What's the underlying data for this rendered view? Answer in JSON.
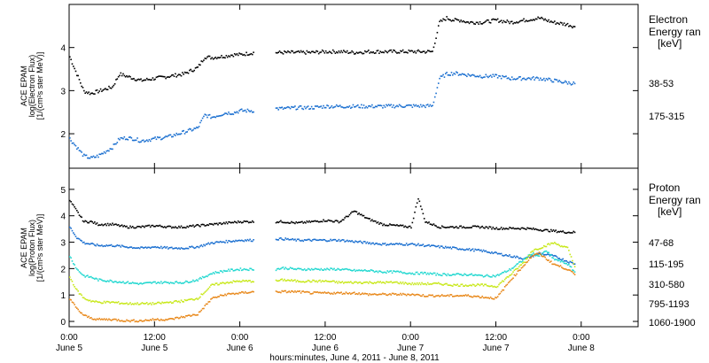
{
  "figure": {
    "xlabel": "hours:minutes, June  4, 2011 - June  8, 2011",
    "x_ticks": [
      {
        "t": 0,
        "time": "0:00",
        "day": "June 5"
      },
      {
        "t": 12,
        "time": "12:00",
        "day": "June 5"
      },
      {
        "t": 24,
        "time": "0:00",
        "day": "June 6"
      },
      {
        "t": 36,
        "time": "12:00",
        "day": "June 6"
      },
      {
        "t": 48,
        "time": "0:00",
        "day": "June 7"
      },
      {
        "t": 60,
        "time": "12:00",
        "day": "June 7"
      },
      {
        "t": 72,
        "time": "0:00",
        "day": "June 8"
      }
    ]
  },
  "chart_data": [
    {
      "type": "scatter",
      "title": "",
      "ylabel": "ACE EPAM",
      "ylabel2": "log(Electron Flux)",
      "ylabel3": "[1/(cm²s ster MeV)]",
      "xlabel": "hours:minutes, June  4, 2011 - June  8, 2011",
      "xlim": [
        0,
        80
      ],
      "ylim": [
        1.2,
        5
      ],
      "y_ticks": [
        2,
        3,
        4
      ],
      "legend_title": [
        "Electron",
        "Energy ran",
        "[keV]"
      ],
      "legend_position": "right",
      "grid": false,
      "series": [
        {
          "name": "38-53",
          "color": "#000000",
          "x": [
            0,
            1,
            2,
            3,
            4,
            5,
            6,
            7,
            8,
            9,
            10,
            12,
            14,
            16,
            18,
            19,
            20,
            21,
            22,
            23,
            24,
            26,
            28,
            29,
            30,
            32,
            34,
            36,
            38,
            40,
            42,
            44,
            46,
            48,
            50,
            51,
            52,
            53,
            54,
            55,
            56,
            58,
            60,
            62,
            64,
            66,
            68,
            70,
            71
          ],
          "y": [
            3.8,
            3.4,
            3.0,
            2.95,
            3.0,
            3.05,
            3.1,
            3.4,
            3.35,
            3.3,
            3.25,
            3.3,
            3.35,
            3.4,
            3.55,
            3.8,
            3.78,
            3.8,
            3.82,
            3.85,
            3.85,
            3.9,
            null,
            3.9,
            3.9,
            3.9,
            3.9,
            3.92,
            3.92,
            3.9,
            3.92,
            3.92,
            3.92,
            3.92,
            3.92,
            3.92,
            4.6,
            4.7,
            4.65,
            4.65,
            4.6,
            4.6,
            4.65,
            4.6,
            4.65,
            4.7,
            4.6,
            4.55,
            4.5
          ]
        },
        {
          "name": "175-315",
          "color": "#1a6fd0",
          "x": [
            0,
            1,
            2,
            3,
            4,
            5,
            6,
            7,
            8,
            9,
            10,
            12,
            14,
            16,
            18,
            19,
            20,
            21,
            22,
            23,
            24,
            26,
            28,
            29,
            30,
            32,
            34,
            36,
            38,
            40,
            42,
            44,
            46,
            48,
            50,
            51,
            52,
            53,
            54,
            55,
            56,
            58,
            60,
            62,
            64,
            66,
            68,
            70,
            71
          ],
          "y": [
            1.9,
            1.7,
            1.5,
            1.45,
            1.5,
            1.6,
            1.7,
            1.9,
            1.92,
            1.9,
            1.85,
            1.9,
            1.95,
            2.05,
            2.15,
            2.45,
            2.4,
            2.45,
            2.5,
            2.5,
            2.55,
            2.55,
            null,
            2.6,
            2.6,
            2.62,
            2.62,
            2.65,
            2.65,
            2.65,
            2.65,
            2.65,
            2.66,
            2.66,
            2.66,
            2.66,
            3.3,
            3.4,
            3.42,
            3.4,
            3.38,
            3.35,
            3.35,
            3.3,
            3.3,
            3.3,
            3.25,
            3.2,
            3.18
          ]
        }
      ]
    },
    {
      "type": "scatter",
      "title": "",
      "ylabel": "ACE EPAM",
      "ylabel2": "log(Proton Flux)",
      "ylabel3": "[1/(cm²s ster MeV)]",
      "xlabel": "hours:minutes, June  4, 2011 - June  8, 2011",
      "xlim": [
        0,
        80
      ],
      "ylim": [
        -0.2,
        5.8
      ],
      "y_ticks": [
        0,
        1,
        2,
        3,
        4,
        5
      ],
      "legend_title": [
        "Proton",
        "Energy ran",
        "[keV]"
      ],
      "legend_position": "right",
      "grid": false,
      "series": [
        {
          "name": "47-68",
          "color": "#000000",
          "x": [
            0,
            1,
            2,
            3,
            4,
            6,
            8,
            10,
            12,
            14,
            16,
            18,
            20,
            22,
            24,
            26,
            28,
            29,
            30,
            32,
            34,
            36,
            38,
            39,
            40,
            42,
            44,
            46,
            48,
            49,
            50,
            51,
            52,
            54,
            56,
            58,
            60,
            62,
            64,
            66,
            68,
            70,
            71
          ],
          "y": [
            4.6,
            4.2,
            3.8,
            3.8,
            3.7,
            3.7,
            3.6,
            3.6,
            3.65,
            3.6,
            3.6,
            3.65,
            3.7,
            3.75,
            3.8,
            3.8,
            null,
            3.8,
            3.8,
            3.75,
            3.8,
            3.85,
            3.8,
            4.0,
            4.2,
            3.9,
            3.7,
            3.65,
            3.6,
            4.7,
            3.8,
            3.7,
            3.6,
            3.6,
            3.6,
            3.6,
            3.55,
            3.55,
            3.55,
            3.5,
            3.45,
            3.4,
            3.4
          ]
        },
        {
          "name": "115-195",
          "color": "#1a6fd0",
          "x": [
            0,
            1,
            2,
            3,
            4,
            6,
            8,
            10,
            12,
            14,
            16,
            18,
            20,
            22,
            24,
            26,
            28,
            29,
            30,
            32,
            34,
            36,
            38,
            40,
            42,
            44,
            46,
            48,
            50,
            52,
            54,
            56,
            58,
            60,
            62,
            64,
            65,
            66,
            67,
            68,
            70,
            71
          ],
          "y": [
            3.6,
            3.2,
            3.0,
            2.95,
            2.9,
            2.9,
            2.85,
            2.8,
            2.85,
            2.8,
            2.8,
            2.85,
            3.0,
            3.05,
            3.1,
            3.1,
            null,
            3.15,
            3.15,
            3.1,
            3.1,
            3.1,
            3.1,
            3.05,
            3.0,
            2.95,
            2.95,
            2.95,
            2.9,
            2.85,
            2.8,
            2.75,
            2.7,
            2.6,
            2.5,
            2.4,
            2.5,
            2.6,
            2.55,
            2.5,
            2.3,
            2.2
          ]
        },
        {
          "name": "310-580",
          "color": "#22d8d0",
          "x": [
            0,
            1,
            2,
            3,
            4,
            6,
            8,
            10,
            12,
            14,
            16,
            18,
            20,
            22,
            24,
            26,
            28,
            29,
            30,
            32,
            34,
            36,
            38,
            40,
            42,
            44,
            46,
            48,
            50,
            52,
            54,
            56,
            58,
            60,
            62,
            64,
            65,
            66,
            67,
            68,
            70,
            71
          ],
          "y": [
            2.5,
            2.0,
            1.75,
            1.7,
            1.6,
            1.55,
            1.5,
            1.45,
            1.5,
            1.5,
            1.5,
            1.6,
            1.85,
            1.95,
            2.0,
            2.0,
            null,
            2.0,
            2.05,
            2.0,
            2.0,
            2.0,
            2.0,
            1.95,
            1.95,
            1.9,
            1.9,
            1.85,
            1.85,
            1.8,
            1.8,
            1.8,
            1.75,
            1.75,
            2.0,
            2.4,
            2.6,
            2.5,
            2.7,
            2.4,
            2.2,
            1.9
          ]
        },
        {
          "name": "795-1193",
          "color": "#c8e81a",
          "x": [
            0,
            1,
            2,
            3,
            4,
            6,
            8,
            10,
            12,
            14,
            16,
            18,
            20,
            22,
            24,
            26,
            28,
            29,
            30,
            32,
            34,
            36,
            38,
            40,
            42,
            44,
            46,
            48,
            50,
            52,
            54,
            56,
            58,
            60,
            62,
            64,
            65,
            66,
            67,
            68,
            70,
            71
          ],
          "y": [
            1.7,
            1.2,
            0.9,
            0.8,
            0.75,
            0.75,
            0.7,
            0.7,
            0.7,
            0.75,
            0.8,
            0.9,
            1.4,
            1.5,
            1.55,
            1.55,
            null,
            1.55,
            1.6,
            1.55,
            1.55,
            1.55,
            1.5,
            1.5,
            1.5,
            1.5,
            1.5,
            1.45,
            1.45,
            1.45,
            1.4,
            1.4,
            1.4,
            1.35,
            1.8,
            2.3,
            2.7,
            2.8,
            2.9,
            3.0,
            2.8,
            2.1
          ]
        },
        {
          "name": "1060-1900",
          "color": "#e8881a",
          "x": [
            0,
            1,
            2,
            3,
            4,
            6,
            8,
            10,
            12,
            14,
            16,
            18,
            20,
            22,
            24,
            26,
            28,
            29,
            30,
            32,
            34,
            36,
            38,
            40,
            42,
            44,
            46,
            48,
            50,
            52,
            54,
            56,
            58,
            60,
            62,
            64,
            65,
            66,
            67,
            68,
            70,
            71
          ],
          "y": [
            0.9,
            0.5,
            0.25,
            0.15,
            0.1,
            0.1,
            0.05,
            0.05,
            0.1,
            0.1,
            0.2,
            0.3,
            0.9,
            1.05,
            1.1,
            1.15,
            null,
            1.15,
            1.15,
            1.15,
            1.1,
            1.1,
            1.1,
            1.1,
            1.05,
            1.05,
            1.05,
            1.05,
            1.0,
            1.0,
            1.0,
            1.0,
            0.95,
            0.9,
            1.6,
            2.2,
            2.5,
            2.6,
            2.4,
            2.2,
            2.0,
            1.8
          ]
        }
      ]
    }
  ]
}
